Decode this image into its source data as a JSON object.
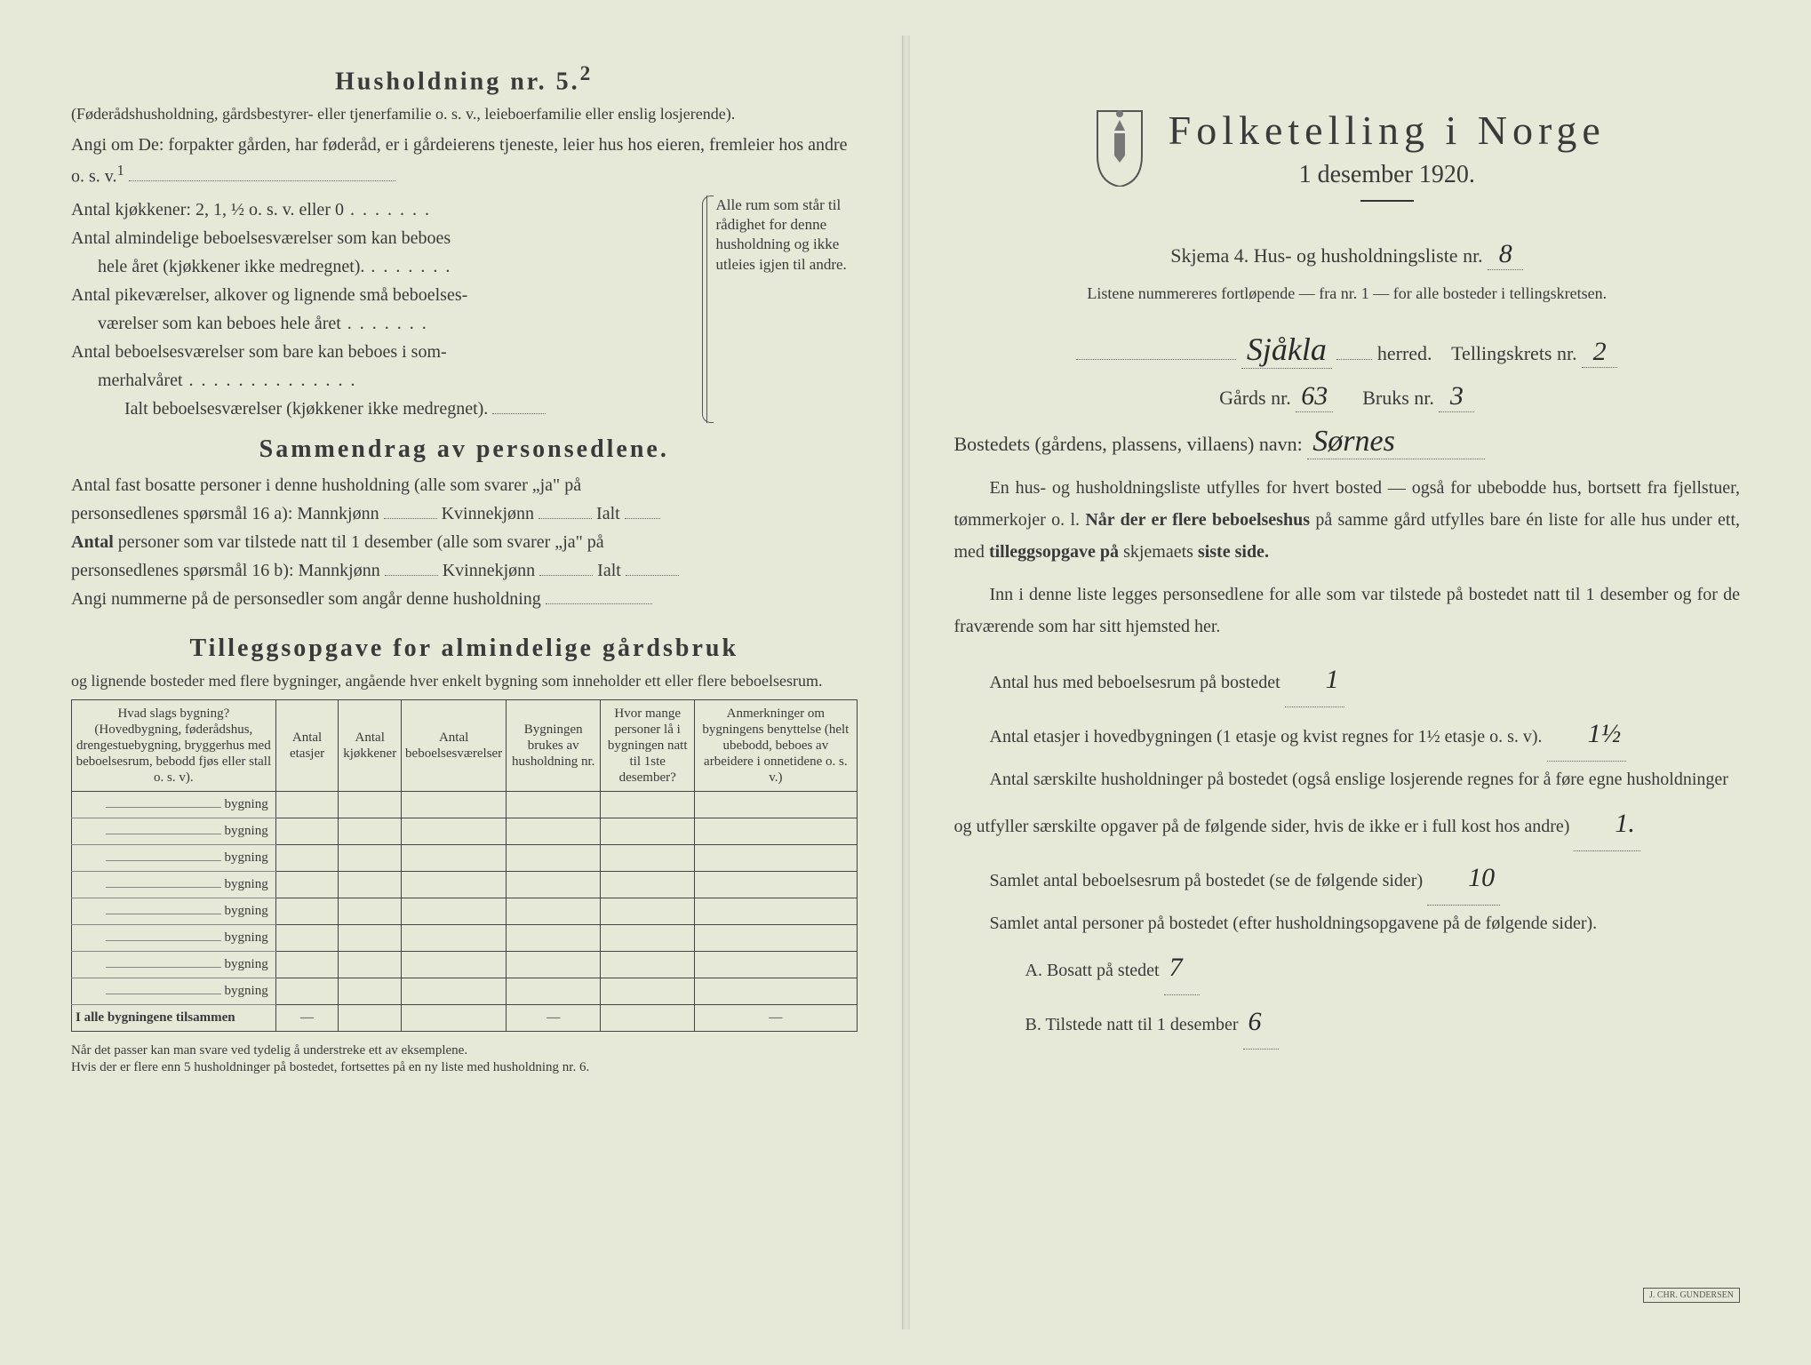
{
  "left": {
    "heading": "Husholdning nr. 5.",
    "heading_sup": "2",
    "sub1": "(Føderådshusholdning, gårdsbestyrer- eller tjenerfamilie o. s. v., leieboerfamilie eller enslig losjerende).",
    "sub2": "Angi om De: forpakter gården, har føderåd, er i gårdeierens tjeneste, leier hus hos eieren, fremleier hos andre o. s. v.",
    "rooms": {
      "l1": "Antal kjøkkener: 2, 1, ½ o. s. v. eller 0",
      "l2a": "Antal almindelige beboelsesværelser som kan beboes",
      "l2b": "hele året (kjøkkener ikke medregnet).",
      "l3a": "Antal pikeværelser, alkover og lignende små beboelses-",
      "l3b": "værelser som kan beboes hele året",
      "l4a": "Antal beboelsesværelser som bare kan beboes i som-",
      "l4b": "merhalvåret",
      "l5": "Ialt beboelsesværelser (kjøkkener ikke medregnet).",
      "sidebar": "Alle rum som står til rådighet for denne husholdning og ikke utleies igjen til andre."
    },
    "summary_heading": "Sammendrag av personsedlene.",
    "summary1a": "Antal fast bosatte personer i denne husholdning (alle som svarer „ja\" på",
    "summary1b": "personsedlenes spørsmål 16 a): Mannkjønn",
    "kvinne": "Kvinnekjønn",
    "ialt": "Ialt",
    "summary2a": "Antal personer som var tilstede natt til 1 desember (alle som svarer „ja\" på",
    "summary2b": "personsedlenes spørsmål 16 b): Mannkjønn",
    "summary3": "Angi nummerne på de personsedler som angår denne husholdning",
    "tillegg_heading": "Tilleggsopgave for almindelige gårdsbruk",
    "tillegg_sub": "og lignende bosteder med flere bygninger, angående hver enkelt bygning som inneholder ett eller flere beboelsesrum.",
    "table": {
      "h1": "Hvad slags bygning?\n(Hovedbygning, føderådshus, drengestuebygning, bryggerhus med beboelsesrum, bebodd fjøs eller stall o. s. v).",
      "h2": "Antal etasjer",
      "h3": "Antal kjøkkener",
      "h4": "Antal beboelsesværelser",
      "h5": "Bygningen brukes av husholdning nr.",
      "h6": "Hvor mange personer lå i bygningen natt til 1ste desember?",
      "h7": "Anmerkninger om bygningens benyttelse (helt ubebodd, beboes av arbeidere i onnetidene o. s. v.)",
      "row_label": "bygning",
      "total_label": "I alle bygningene tilsammen"
    },
    "footnote": "Når det passer kan man svare ved tydelig å understreke ett av eksemplene.\nHvis der er flere enn 5 husholdninger på bostedet, fortsettes på en ny liste med husholdning nr. 6."
  },
  "right": {
    "title": "Folketelling i Norge",
    "subtitle": "1 desember 1920.",
    "skjema": "Skjema 4. Hus- og husholdningsliste nr.",
    "skjema_val": "8",
    "list_note": "Listene nummereres fortløpende — fra nr. 1 — for alle bosteder i tellingskretsen.",
    "herred_val": "Sjåkla",
    "herred_label": "herred.",
    "krets_label": "Tellingskrets nr.",
    "krets_val": "2",
    "gards_label": "Gårds nr.",
    "gards_val": "63",
    "bruks_label": "Bruks nr.",
    "bruks_val": "3",
    "bosted_label": "Bostedets (gårdens, plassens, villaens) navn:",
    "bosted_val": "Sørnes",
    "para1": "En hus- og husholdningsliste utfylles for hvert bosted — også for ubebodde hus, bortsett fra fjellstuer, tømmerkojer o. l. Når der er flere beboelseshus på samme gård utfylles bare én liste for alle hus under ett, med tilleggsopgave på skjemaets siste side.",
    "para2": "Inn i denne liste legges personsedlene for alle som var tilstede på bostedet natt til 1 desember og for de fraværende som har sitt hjemsted her.",
    "q1": "Antal hus med beboelsesrum på bostedet",
    "q1_val": "1",
    "q2": "Antal etasjer i hovedbygningen (1 etasje og kvist regnes for 1½ etasje o. s. v).",
    "q2_val": "1½",
    "q3": "Antal særskilte husholdninger på bostedet (også enslige losjerende regnes for å føre egne husholdninger og utfyller særskilte opgaver på de følgende sider, hvis de ikke er i full kost hos andre)",
    "q3_val": "1.",
    "q4": "Samlet antal beboelsesrum på bostedet (se de følgende sider)",
    "q4_val": "10",
    "q5": "Samlet antal personer på bostedet (efter husholdningsopgavene på de følgende sider).",
    "qA": "A. Bosatt på stedet",
    "qA_val": "7",
    "qB": "B. Tilstede natt til 1 desember",
    "qB_val": "6"
  },
  "colors": {
    "bg": "#e6e8d8",
    "text": "#3a3a3a",
    "border": "#444444"
  }
}
